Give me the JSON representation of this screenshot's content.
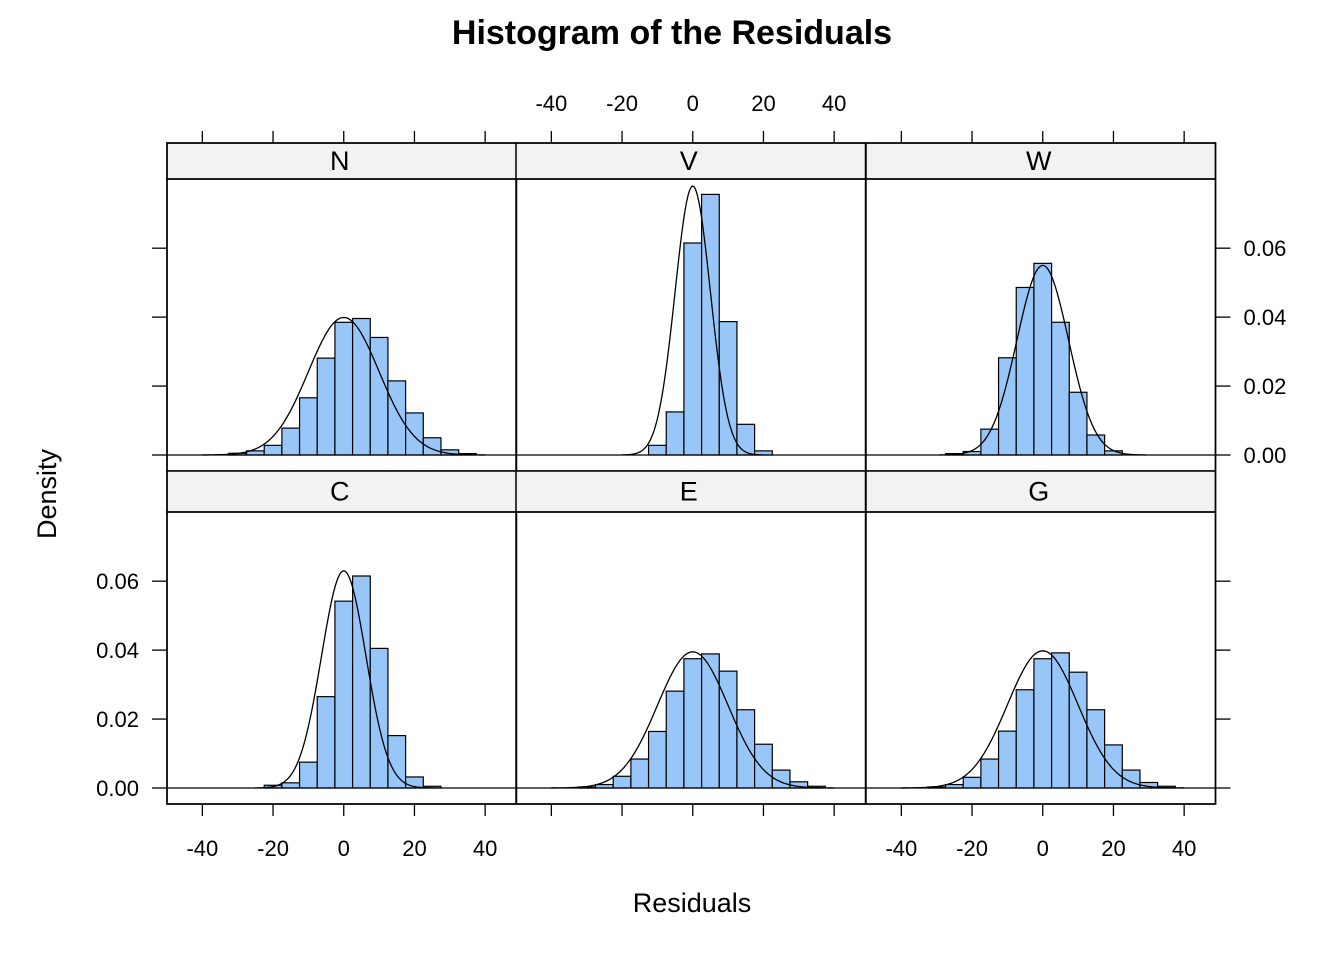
{
  "colors": {
    "bar_fill": "#99c6f8",
    "bar_stroke": "#000000",
    "strip_fill": "#f2f2f2",
    "curve": "#000000"
  },
  "chart_data": {
    "type": "bar",
    "title": "Histogram of the Residuals",
    "xlabel": "Residuals",
    "ylabel": "Density",
    "xlim": [
      -50,
      50
    ],
    "ylim": [
      0,
      0.08
    ],
    "xticks": [
      "-40",
      "-20",
      "0",
      "20",
      "40"
    ],
    "yticks": [
      "0.00",
      "0.02",
      "0.04",
      "0.06"
    ],
    "bin_start": -32.5,
    "bin_width": 5,
    "panels": [
      {
        "name": "N",
        "values": [
          0.0005,
          0.0012,
          0.0028,
          0.0078,
          0.0166,
          0.0281,
          0.0385,
          0.0396,
          0.0341,
          0.0215,
          0.0122,
          0.005,
          0.0015,
          0.0004
        ],
        "curve": {
          "mean": 0,
          "sd": 10,
          "peak": 0.0399
        }
      },
      {
        "name": "V",
        "values": [
          0,
          0,
          0,
          0,
          0.0028,
          0.0125,
          0.0615,
          0.0756,
          0.0387,
          0.0089,
          0.0012,
          0,
          0,
          0
        ],
        "curve": {
          "mean": 0,
          "sd": 5,
          "peak": 0.078
        }
      },
      {
        "name": "W",
        "values": [
          0,
          0.0004,
          0.001,
          0.0075,
          0.0282,
          0.0486,
          0.0556,
          0.0385,
          0.0182,
          0.0058,
          0.0012,
          0,
          0,
          0
        ],
        "curve": {
          "mean": 0,
          "sd": 7.3,
          "peak": 0.055
        }
      },
      {
        "name": "C",
        "values": [
          0,
          0,
          0.0008,
          0.0015,
          0.0075,
          0.0265,
          0.0542,
          0.0615,
          0.0405,
          0.0152,
          0.0032,
          0.0005,
          0,
          0
        ],
        "curve": {
          "mean": 0,
          "sd": 6.3,
          "peak": 0.063
        }
      },
      {
        "name": "E",
        "values": [
          0.0003,
          0.001,
          0.0034,
          0.0084,
          0.0164,
          0.0281,
          0.0375,
          0.0389,
          0.0339,
          0.0227,
          0.0127,
          0.0052,
          0.0018,
          0.0005
        ],
        "curve": {
          "mean": 0,
          "sd": 10,
          "peak": 0.0395
        }
      },
      {
        "name": "G",
        "values": [
          0.0003,
          0.001,
          0.0031,
          0.0084,
          0.0165,
          0.0285,
          0.0375,
          0.0392,
          0.0336,
          0.0227,
          0.0125,
          0.0052,
          0.0016,
          0.0005
        ],
        "curve": {
          "mean": 0,
          "sd": 10,
          "peak": 0.0398
        }
      }
    ]
  }
}
